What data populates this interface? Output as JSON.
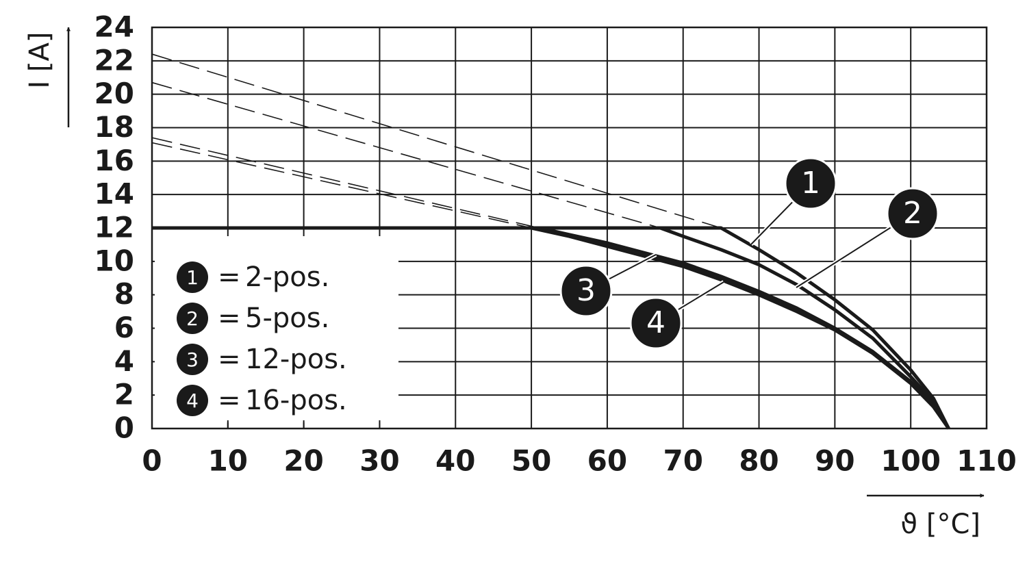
{
  "chart_data": {
    "type": "line",
    "x_label": "ϑ [°C]",
    "y_label": "I [A]",
    "xlim": [
      0,
      110
    ],
    "xticks": [
      0,
      10,
      20,
      30,
      40,
      50,
      60,
      70,
      80,
      90,
      100,
      110
    ],
    "ylim": [
      0,
      24
    ],
    "yticks": [
      0,
      2,
      4,
      6,
      8,
      10,
      12,
      14,
      16,
      18,
      20,
      22,
      24
    ],
    "grid": true,
    "legend_position": "lower left",
    "legend_separator": "=",
    "series": [
      {
        "name": "2-pos.",
        "marker_label": "1",
        "color": "#1a1a1a",
        "x": [
          0,
          75,
          80,
          85,
          90,
          95,
          100,
          103,
          105
        ],
        "values": [
          12,
          12,
          10.7,
          9.3,
          7.7,
          5.9,
          3.5,
          1.8,
          0
        ],
        "dashed_x": [
          0,
          75
        ],
        "dashed_values": [
          22.4,
          12
        ]
      },
      {
        "name": "5-pos.",
        "marker_label": "2",
        "color": "#1a1a1a",
        "x": [
          0,
          67,
          70,
          75,
          80,
          85,
          90,
          95,
          100,
          103,
          105
        ],
        "values": [
          12,
          12,
          11.5,
          10.7,
          9.8,
          8.6,
          7.1,
          5.4,
          3.1,
          1.6,
          0
        ],
        "dashed_x": [
          0,
          67
        ],
        "dashed_values": [
          20.7,
          12
        ]
      },
      {
        "name": "12-pos.",
        "marker_label": "3",
        "color": "#1a1a1a",
        "x": [
          0,
          51,
          55,
          60,
          65,
          70,
          75,
          80,
          85,
          90,
          95,
          100,
          103,
          105
        ],
        "values": [
          12,
          12,
          11.6,
          11.1,
          10.5,
          9.9,
          9.1,
          8.2,
          7.2,
          6.0,
          4.6,
          2.8,
          1.4,
          0
        ],
        "dashed_x": [
          0,
          51
        ],
        "dashed_values": [
          17.4,
          12
        ]
      },
      {
        "name": "16-pos.",
        "marker_label": "4",
        "color": "#1a1a1a",
        "x": [
          0,
          50,
          55,
          60,
          65,
          70,
          75,
          80,
          85,
          90,
          95,
          100,
          103,
          105
        ],
        "values": [
          12,
          12,
          11.5,
          10.9,
          10.3,
          9.7,
          8.9,
          8.0,
          7.0,
          5.9,
          4.5,
          2.7,
          1.3,
          0
        ],
        "dashed_x": [
          0,
          50
        ],
        "dashed_values": [
          17.1,
          12
        ]
      }
    ]
  }
}
